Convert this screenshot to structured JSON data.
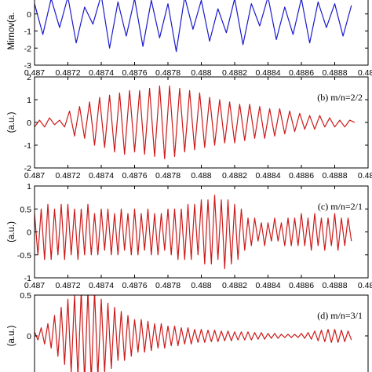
{
  "chart_data": [
    {
      "type": "line",
      "panel": "a",
      "ylabel": "Mirnov(a.",
      "annotation": "",
      "color": "#1a1acc",
      "xlim": [
        0.487,
        0.489
      ],
      "ylim": [
        -3,
        1
      ],
      "xticks": [
        "0.487",
        "0.4872",
        "0.4874",
        "0.4876",
        "0.4878",
        "0.488",
        "0.4882",
        "0.4884",
        "0.4886",
        "0.4888",
        "0.489"
      ],
      "yticks": [
        -3,
        -2,
        -1,
        0
      ],
      "x": [
        0.487,
        0.48705,
        0.4871,
        0.48715,
        0.4872,
        0.48725,
        0.4873,
        0.48735,
        0.4874,
        0.48745,
        0.4875,
        0.48755,
        0.4876,
        0.48765,
        0.4877,
        0.48775,
        0.4878,
        0.48785,
        0.4879,
        0.48795,
        0.488,
        0.48805,
        0.4881,
        0.48815,
        0.4882,
        0.48825,
        0.4883,
        0.48835,
        0.4884,
        0.48845,
        0.4885,
        0.48855,
        0.4886,
        0.48865,
        0.4887,
        0.48875,
        0.4888,
        0.48885,
        0.4889
      ],
      "y": [
        0.6,
        -1.2,
        0.9,
        -0.8,
        1.0,
        -1.7,
        0.4,
        -0.6,
        1.1,
        -2.0,
        0.7,
        -1.3,
        0.9,
        -1.9,
        0.8,
        -1.4,
        0.6,
        -2.2,
        1.0,
        -0.9,
        0.8,
        -1.6,
        0.3,
        -1.1,
        0.9,
        -1.8,
        0.6,
        -0.7,
        1.0,
        -1.5,
        0.4,
        -1.2,
        0.9,
        -1.7,
        0.7,
        -0.8,
        0.6,
        -1.3,
        0.5
      ]
    },
    {
      "type": "line",
      "panel": "b",
      "ylabel": "(a.u.)",
      "annotation": "(b) m/n=2/2",
      "color": "#cc1a1a",
      "xlim": [
        0.487,
        0.489
      ],
      "ylim": [
        -2,
        2
      ],
      "xticks": [
        "0.487",
        "0.4872",
        "0.4874",
        "0.4876",
        "0.4878",
        "0.488",
        "0.4882",
        "0.4884",
        "0.4886",
        "0.4888",
        "0.489"
      ],
      "yticks": [
        -2,
        -1,
        0,
        1,
        2
      ],
      "x": [
        0.487,
        0.48703,
        0.48706,
        0.48709,
        0.48712,
        0.48715,
        0.48718,
        0.48721,
        0.48724,
        0.48727,
        0.4873,
        0.48733,
        0.48736,
        0.48739,
        0.48742,
        0.48745,
        0.48748,
        0.48751,
        0.48754,
        0.48757,
        0.4876,
        0.48763,
        0.48766,
        0.48769,
        0.48772,
        0.48775,
        0.48778,
        0.48781,
        0.48784,
        0.48787,
        0.4879,
        0.48793,
        0.48796,
        0.48799,
        0.48802,
        0.48805,
        0.48808,
        0.48811,
        0.48814,
        0.48817,
        0.4882,
        0.48823,
        0.48826,
        0.48829,
        0.48832,
        0.48835,
        0.48838,
        0.48841,
        0.48844,
        0.48847,
        0.4885,
        0.48853,
        0.48856,
        0.48859,
        0.48862,
        0.48865,
        0.48868,
        0.48871,
        0.48874,
        0.48877,
        0.4888,
        0.48883,
        0.48886,
        0.48889,
        0.48892
      ],
      "y": [
        -0.2,
        0.1,
        -0.2,
        0.2,
        -0.1,
        0.1,
        -0.2,
        0.5,
        -0.6,
        0.7,
        -0.7,
        0.9,
        -1.0,
        1.1,
        -1.1,
        1.2,
        -1.3,
        1.3,
        -1.4,
        1.4,
        -1.3,
        1.4,
        -1.4,
        1.5,
        -1.5,
        1.6,
        -1.6,
        1.6,
        -1.5,
        1.5,
        -1.3,
        1.4,
        -1.2,
        1.3,
        -1.1,
        1.1,
        -1.0,
        1.0,
        -0.9,
        0.9,
        -0.9,
        0.8,
        -0.8,
        0.8,
        -0.7,
        0.7,
        -0.7,
        0.6,
        -0.6,
        0.6,
        -0.5,
        0.5,
        -0.4,
        0.4,
        -0.3,
        0.3,
        -0.3,
        0.3,
        -0.2,
        0.2,
        -0.2,
        0.1,
        -0.2,
        0.1,
        0.0
      ]
    },
    {
      "type": "line",
      "panel": "c",
      "ylabel": "(a.u.)",
      "annotation": "(c) m/n=2/1",
      "color": "#cc1a1a",
      "xlim": [
        0.487,
        0.489
      ],
      "ylim": [
        -1,
        1
      ],
      "xticks": [
        "0.487",
        "0.4872",
        "0.4874",
        "0.4876",
        "0.4878",
        "0.488",
        "0.4882",
        "0.4884",
        "0.4886",
        "0.4888",
        "0.489"
      ],
      "yticks": [
        -1,
        -0.5,
        0,
        0.5,
        1
      ],
      "x": [
        0.487,
        0.48702,
        0.48704,
        0.48706,
        0.48708,
        0.4871,
        0.48712,
        0.48714,
        0.48716,
        0.48718,
        0.4872,
        0.48722,
        0.48724,
        0.48726,
        0.48728,
        0.4873,
        0.48732,
        0.48734,
        0.48736,
        0.48738,
        0.4874,
        0.48742,
        0.48744,
        0.48746,
        0.48748,
        0.4875,
        0.48752,
        0.48754,
        0.48756,
        0.48758,
        0.4876,
        0.48762,
        0.48764,
        0.48766,
        0.48768,
        0.4877,
        0.48772,
        0.48774,
        0.48776,
        0.48778,
        0.4878,
        0.48782,
        0.48784,
        0.48786,
        0.48788,
        0.4879,
        0.48792,
        0.48794,
        0.48796,
        0.48798,
        0.488,
        0.48802,
        0.48804,
        0.48806,
        0.48808,
        0.4881,
        0.48812,
        0.48814,
        0.48816,
        0.48818,
        0.4882,
        0.48822,
        0.48824,
        0.48826,
        0.48828,
        0.4883,
        0.48832,
        0.48834,
        0.48836,
        0.48838,
        0.4884,
        0.48842,
        0.48844,
        0.48846,
        0.48848,
        0.4885,
        0.48852,
        0.48854,
        0.48856,
        0.48858,
        0.4886,
        0.48862,
        0.48864,
        0.48866,
        0.48868,
        0.4887,
        0.48872,
        0.48874,
        0.48876,
        0.48878,
        0.4888,
        0.48882,
        0.48884,
        0.48886,
        0.48888,
        0.4889
      ],
      "y": [
        0.4,
        -0.5,
        0.5,
        -0.6,
        0.6,
        -0.6,
        0.5,
        -0.5,
        0.6,
        -0.6,
        0.6,
        -0.5,
        0.5,
        -0.6,
        0.5,
        -0.5,
        0.6,
        -0.5,
        0.4,
        -0.5,
        0.5,
        -0.4,
        0.5,
        -0.5,
        0.4,
        -0.5,
        0.5,
        -0.4,
        0.4,
        -0.5,
        0.5,
        -0.5,
        0.4,
        -0.4,
        0.5,
        -0.5,
        0.4,
        -0.5,
        0.4,
        -0.4,
        0.5,
        -0.5,
        0.5,
        -0.6,
        0.5,
        -0.6,
        0.6,
        -0.6,
        0.6,
        -0.5,
        0.7,
        -0.7,
        0.7,
        -0.7,
        0.8,
        -0.6,
        0.7,
        -0.8,
        0.7,
        -0.7,
        0.6,
        -0.6,
        0.5,
        -0.4,
        0.3,
        -0.3,
        0.3,
        -0.2,
        0.2,
        -0.3,
        0.2,
        -0.2,
        0.3,
        -0.2,
        0.2,
        -0.3,
        0.3,
        -0.3,
        0.3,
        -0.3,
        0.4,
        -0.3,
        0.3,
        -0.4,
        0.4,
        -0.3,
        0.3,
        -0.4,
        0.3,
        -0.3,
        0.4,
        -0.4,
        0.3,
        -0.3,
        0.3,
        -0.2
      ]
    },
    {
      "type": "line",
      "panel": "d",
      "ylabel": "(a.u.)",
      "annotation": "(d) m/n=3/1",
      "color": "#cc1a1a",
      "xlim": [
        0.487,
        0.489
      ],
      "ylim": [
        -0.5,
        0.5
      ],
      "xticks": [],
      "yticks": [
        -0.5,
        0,
        0.5
      ],
      "x": [
        0.487,
        0.48702,
        0.48704,
        0.48706,
        0.48708,
        0.4871,
        0.48712,
        0.48714,
        0.48716,
        0.48718,
        0.4872,
        0.48722,
        0.48724,
        0.48726,
        0.48728,
        0.4873,
        0.48732,
        0.48734,
        0.48736,
        0.48738,
        0.4874,
        0.48742,
        0.48744,
        0.48746,
        0.48748,
        0.4875,
        0.48752,
        0.48754,
        0.48756,
        0.48758,
        0.4876,
        0.48762,
        0.48764,
        0.48766,
        0.48768,
        0.4877,
        0.48772,
        0.48774,
        0.48776,
        0.48778,
        0.4878,
        0.48782,
        0.48784,
        0.48786,
        0.48788,
        0.4879,
        0.48792,
        0.48794,
        0.48796,
        0.48798,
        0.488,
        0.48802,
        0.48804,
        0.48806,
        0.48808,
        0.4881,
        0.48812,
        0.48814,
        0.48816,
        0.48818,
        0.4882,
        0.48822,
        0.48824,
        0.48826,
        0.48828,
        0.4883,
        0.48832,
        0.48834,
        0.48836,
        0.48838,
        0.4884,
        0.48842,
        0.48844,
        0.48846,
        0.48848,
        0.4885,
        0.48852,
        0.48854,
        0.48856,
        0.48858,
        0.4886,
        0.48862,
        0.48864,
        0.48866,
        0.48868,
        0.4887,
        0.48872,
        0.48874,
        0.48876,
        0.48878,
        0.4888,
        0.48882,
        0.48884,
        0.48886,
        0.48888,
        0.4889
      ],
      "y": [
        0.05,
        -0.05,
        0.1,
        -0.1,
        0.15,
        -0.15,
        0.25,
        -0.25,
        0.35,
        -0.35,
        0.45,
        -0.45,
        0.5,
        -0.5,
        0.55,
        -0.55,
        0.55,
        -0.55,
        0.55,
        -0.5,
        0.45,
        -0.45,
        0.4,
        -0.4,
        0.35,
        -0.3,
        0.3,
        -0.3,
        0.25,
        -0.25,
        0.2,
        -0.2,
        0.2,
        -0.2,
        0.18,
        -0.18,
        0.15,
        -0.15,
        0.15,
        -0.15,
        0.12,
        -0.12,
        0.12,
        -0.12,
        0.1,
        -0.1,
        0.1,
        -0.1,
        0.08,
        -0.08,
        0.08,
        -0.08,
        0.07,
        -0.07,
        0.07,
        -0.07,
        0.06,
        -0.06,
        0.06,
        -0.06,
        0.05,
        -0.05,
        0.05,
        -0.05,
        0.05,
        -0.05,
        0.04,
        -0.04,
        0.04,
        -0.04,
        0.03,
        -0.03,
        0.03,
        -0.03,
        0.02,
        -0.02,
        0.02,
        -0.02,
        0.02,
        -0.02,
        0.03,
        -0.03,
        0.04,
        -0.04,
        0.06,
        -0.06,
        0.07,
        -0.07,
        0.08,
        -0.08,
        0.08,
        -0.08,
        0.07,
        -0.07,
        0.06,
        -0.05
      ]
    }
  ]
}
